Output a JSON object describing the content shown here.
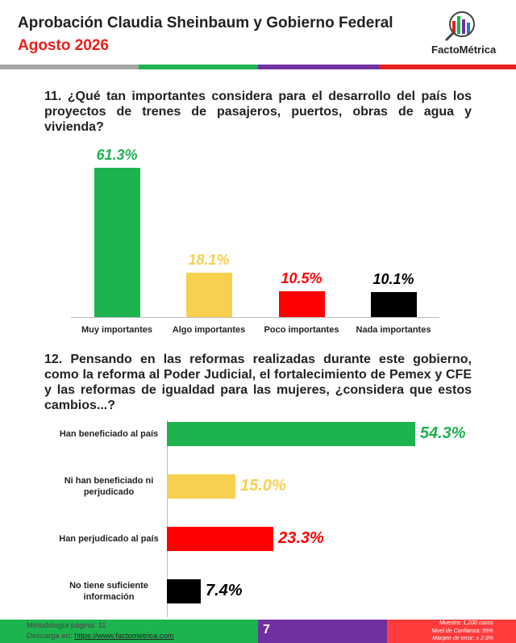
{
  "header": {
    "title": "Aprobación Claudia Sheinbaum y Gobierno Federal",
    "subtitle": "Agosto 2026",
    "logo": "FactoMétrica"
  },
  "chart_data": [
    {
      "type": "bar",
      "title": "11. ¿Qué tan importantes considera para el desarrollo del país los proyectos de trenes de pasajeros, puertos, obras de agua y vivienda?",
      "categories": [
        "Muy importantes",
        "Algo importantes",
        "Poco importantes",
        "Nada importantes"
      ],
      "values": [
        61.3,
        18.1,
        10.5,
        10.1
      ],
      "value_labels": [
        "61.3%",
        "18.1%",
        "10.5%",
        "10.1%"
      ],
      "colors": [
        "#1db34f",
        "#f7d050",
        "#ff0000",
        "#000000"
      ]
    },
    {
      "type": "barh",
      "title": "12. Pensando en las reformas realizadas durante este gobierno, como la reforma al Poder Judicial, el fortalecimiento de Pemex y CFE y las reformas de igualdad para las mujeres, ¿considera que estos cambios...?",
      "categories": [
        "Han beneficiado al país",
        "Ni han beneficiado ni perjudicado",
        "Han perjudicado al país",
        "No tiene suficiente información"
      ],
      "values": [
        54.3,
        15.0,
        23.3,
        7.4
      ],
      "value_labels": [
        "54.3%",
        "15.0%",
        "23.3%",
        "7.4%"
      ],
      "colors": [
        "#1db34f",
        "#f7d050",
        "#ff0000",
        "#000000"
      ]
    }
  ],
  "footer": {
    "methodology": "Metodología página: 11",
    "download_prefix": "Descarga en:",
    "download_link": "https://www.factometrica.com",
    "page": "7",
    "sample": "Muestra: 1,200 casos",
    "confidence": "Nivel de Confianza: 95%",
    "margin": "Margen de error: ± 2.9%"
  }
}
